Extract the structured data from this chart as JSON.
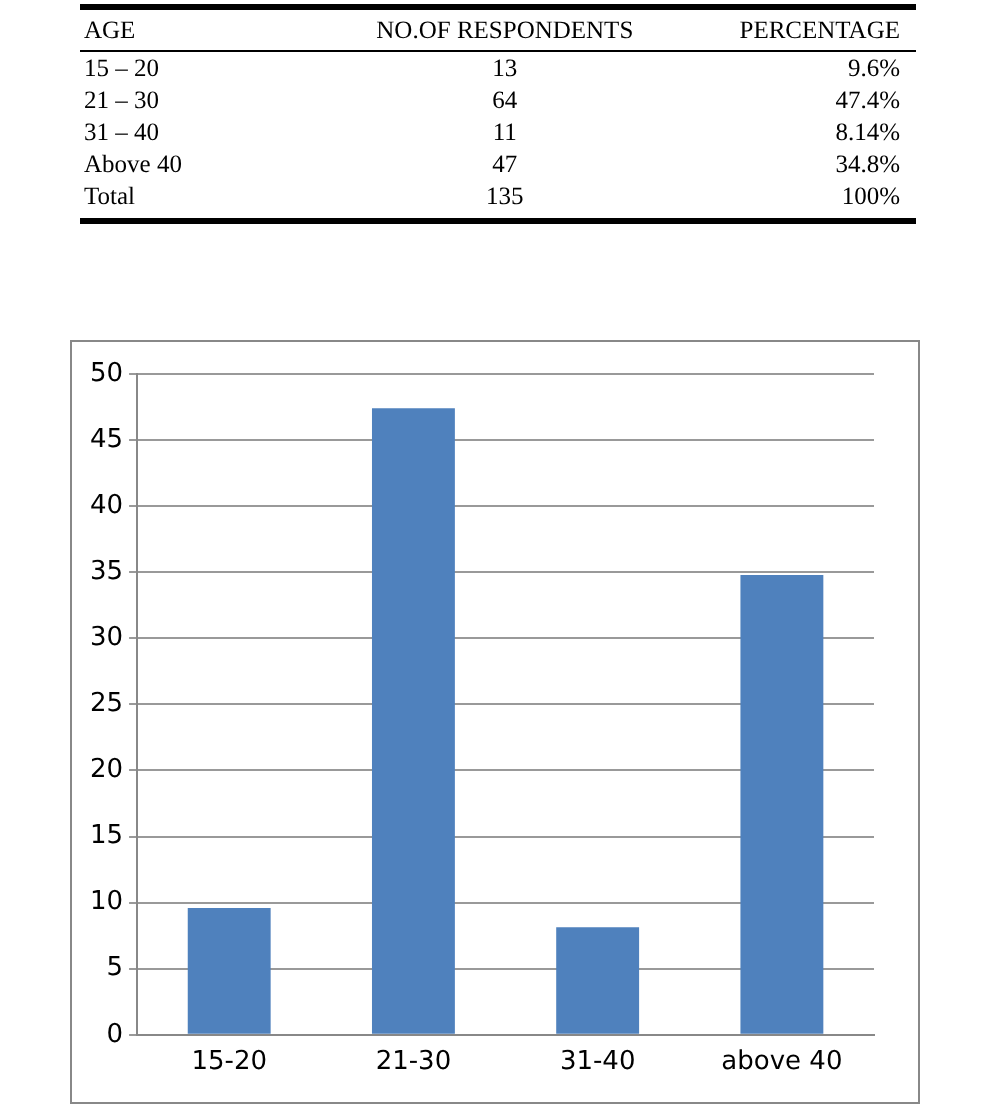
{
  "chart_data": [
    {
      "type": "other",
      "annotations": [
        "AGE",
        "NO.OF RESPONDENTS",
        "PERCENTAGE",
        "15 – 20",
        "13",
        "9.6%",
        "21 – 30",
        "64",
        "47.4%",
        "31 – 40",
        "11",
        "8.14%",
        "Above 40",
        "47",
        "34.8%",
        "Total",
        "135",
        "100%"
      ]
    },
    {
      "type": "bar",
      "categories": [
        "15-20",
        "21-30",
        "31-40",
        "above 40"
      ],
      "values": [
        9.6,
        47.4,
        8.14,
        34.8
      ],
      "color": "#4f81bd",
      "ylim": [
        0,
        50
      ],
      "yticks": [
        0,
        5,
        10,
        15,
        20,
        25,
        30,
        35,
        40,
        45,
        50
      ],
      "grid": "y",
      "legend": false
    }
  ]
}
